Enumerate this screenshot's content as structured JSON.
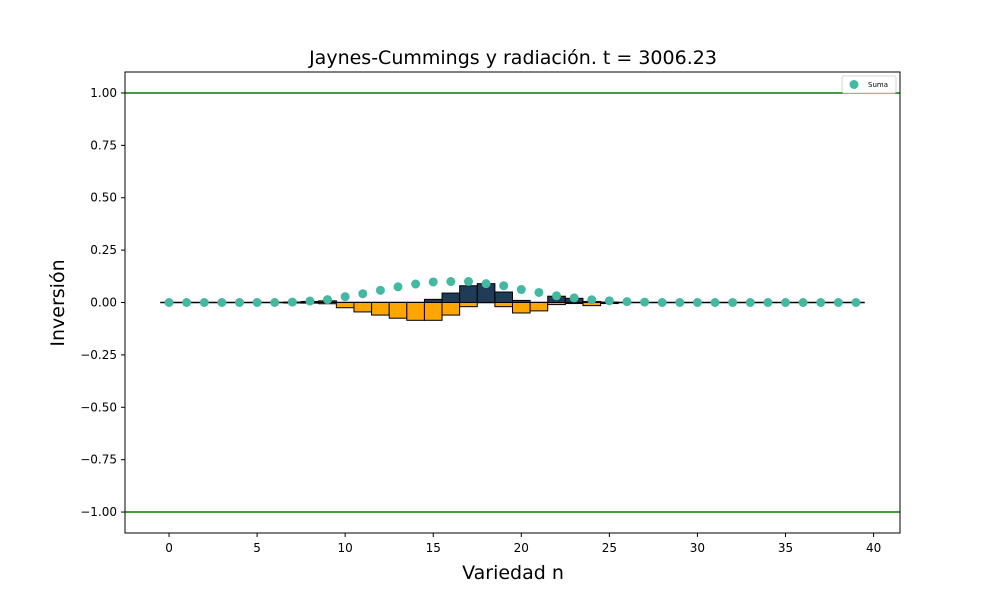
{
  "chart_data": {
    "type": "bar",
    "title": "Jaynes-Cummings y radiación. t = 3006.23",
    "xlabel": "Variedad n",
    "ylabel": "Inversión",
    "xlim": [
      -2.5,
      41.5
    ],
    "ylim": [
      -1.1,
      1.1
    ],
    "xticks": [
      0,
      5,
      10,
      15,
      20,
      25,
      30,
      35,
      40
    ],
    "xtick_labels": [
      "0",
      "5",
      "10",
      "15",
      "20",
      "25",
      "30",
      "35",
      "40"
    ],
    "yticks": [
      1.0,
      0.75,
      0.5,
      0.25,
      0.0,
      -0.25,
      -0.5,
      -0.75,
      -1.0
    ],
    "ytick_labels": [
      "1.00",
      "0.75",
      "0.50",
      "0.25",
      "0.00",
      "−0.25",
      "−0.50",
      "−0.75",
      "−1.00"
    ],
    "hlines": [
      {
        "y": 1.0,
        "color": "#008000"
      },
      {
        "y": -1.0,
        "color": "#008000"
      }
    ],
    "baseline": {
      "y": 0.0,
      "x_range": [
        -0.5,
        39.5
      ],
      "color": "#000000"
    },
    "series": [
      {
        "kind": "bar",
        "color": "#1f3b57",
        "x": [
          7,
          8,
          9,
          10,
          11,
          12,
          13,
          14,
          15,
          16,
          17,
          18,
          19,
          20,
          21,
          22,
          23,
          24,
          25
        ],
        "values": [
          0.002,
          0.005,
          0.008,
          0.0,
          0.0,
          0.0,
          0.0,
          0.0,
          0.015,
          0.045,
          0.08,
          0.09,
          0.05,
          0.01,
          0.0,
          0.03,
          0.02,
          0.005,
          0.002
        ]
      },
      {
        "kind": "bar",
        "color": "#ffa500",
        "x": [
          7,
          8,
          9,
          10,
          11,
          12,
          13,
          14,
          15,
          16,
          17,
          18,
          19,
          20,
          21,
          22,
          23,
          24,
          25
        ],
        "values": [
          -0.002,
          -0.003,
          -0.006,
          -0.025,
          -0.045,
          -0.06,
          -0.075,
          -0.085,
          -0.085,
          -0.06,
          -0.02,
          0.0,
          -0.02,
          -0.05,
          -0.04,
          -0.01,
          -0.005,
          -0.015,
          -0.005
        ]
      },
      {
        "kind": "scatter",
        "name": "Suma",
        "color": "#44b8a0",
        "x": [
          0,
          1,
          2,
          3,
          4,
          5,
          6,
          7,
          8,
          9,
          10,
          11,
          12,
          13,
          14,
          15,
          16,
          17,
          18,
          19,
          20,
          21,
          22,
          23,
          24,
          25,
          26,
          27,
          28,
          29,
          30,
          31,
          32,
          33,
          34,
          35,
          36,
          37,
          38,
          39
        ],
        "values": [
          0.0,
          0.0,
          0.0,
          0.0,
          0.0,
          0.0,
          0.0,
          0.002,
          0.007,
          0.014,
          0.028,
          0.042,
          0.058,
          0.075,
          0.088,
          0.098,
          0.1,
          0.1,
          0.09,
          0.08,
          0.062,
          0.048,
          0.032,
          0.022,
          0.013,
          0.008,
          0.004,
          0.002,
          0.0,
          0.0,
          0.0,
          0.0,
          0.0,
          0.0,
          0.0,
          0.0,
          0.0,
          0.0,
          0.0,
          0.0
        ]
      }
    ],
    "legend": {
      "position": "top-right",
      "entries": [
        "Suma"
      ]
    },
    "grid": false
  }
}
